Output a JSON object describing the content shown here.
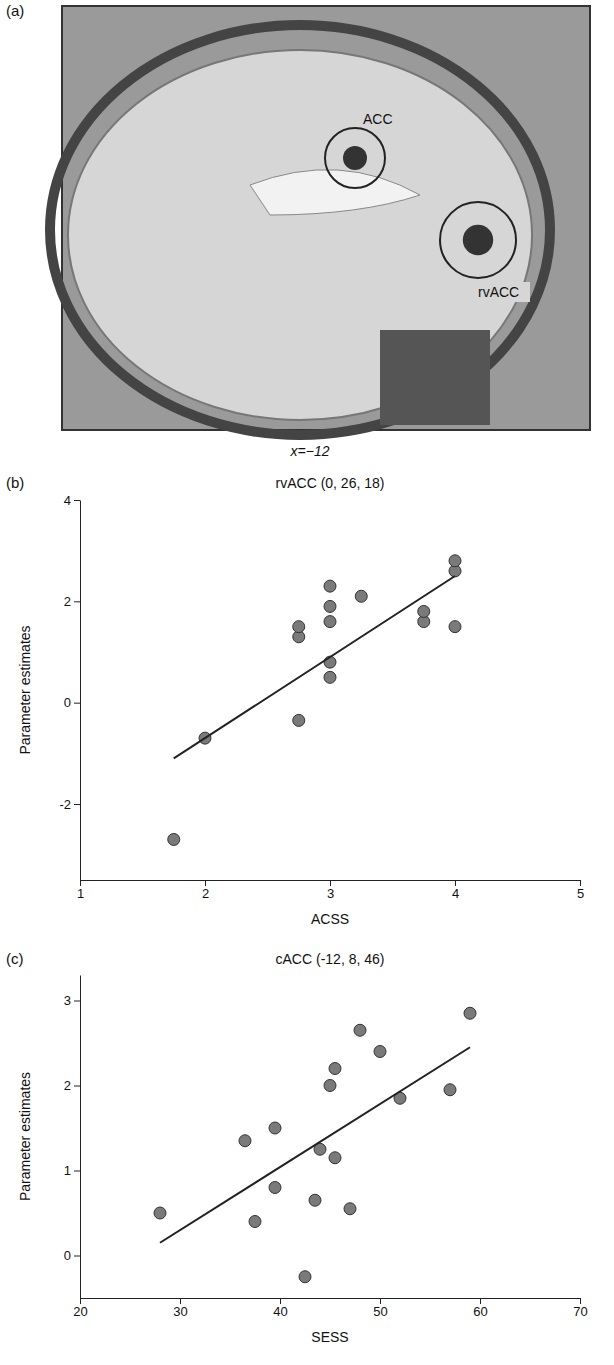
{
  "chart_data": [
    {
      "type": "image",
      "panel": "(a)",
      "labels": [
        "ACC",
        "rvACC"
      ],
      "caption": "x=−12"
    },
    {
      "type": "scatter",
      "panel": "(b)",
      "title": "rvACC (0, 26, 18)",
      "x_label": "ACSS",
      "y_label": "Parameter estimates",
      "xlim": [
        1,
        5
      ],
      "xticks": [
        1,
        2,
        3,
        4,
        5
      ],
      "ylim": [
        -3.5,
        4
      ],
      "yticks": [
        -2,
        0,
        2,
        4
      ],
      "series": [
        {
          "type": "scatter",
          "color": "#7a7a7a",
          "x": [
            1.75,
            2,
            2.75,
            2.75,
            2.75,
            3,
            3,
            3,
            3,
            3,
            3.25,
            3.75,
            3.75,
            4,
            4,
            4
          ],
          "values": [
            -2.7,
            -0.7,
            -0.35,
            1.3,
            1.5,
            0.5,
            0.8,
            1.6,
            1.9,
            2.3,
            2.1,
            1.6,
            1.8,
            1.5,
            2.6,
            2.8
          ]
        },
        {
          "type": "line",
          "color": "#222222",
          "x": [
            1.75,
            4
          ],
          "values": [
            -1.1,
            2.5
          ]
        }
      ]
    },
    {
      "type": "scatter",
      "panel": "(c)",
      "title": "cACC (-12, 8, 46)",
      "x_label": "SESS",
      "y_label": "Parameter estimates",
      "xlim": [
        20,
        70
      ],
      "xticks": [
        20,
        30,
        40,
        50,
        60,
        70
      ],
      "ylim": [
        -0.5,
        3.3
      ],
      "yticks": [
        0,
        1,
        2,
        3
      ],
      "series": [
        {
          "type": "scatter",
          "color": "#7a7a7a",
          "x": [
            28,
            36.5,
            37.5,
            39.5,
            39.5,
            42.5,
            43.5,
            44,
            45,
            45.5,
            45.5,
            47,
            48,
            50,
            52,
            57,
            59
          ],
          "values": [
            0.5,
            1.35,
            0.4,
            1.5,
            0.8,
            -0.25,
            0.65,
            1.25,
            2.0,
            2.2,
            1.15,
            0.55,
            2.65,
            2.4,
            1.85,
            1.95,
            2.85
          ]
        },
        {
          "type": "line",
          "color": "#222222",
          "x": [
            28,
            59
          ],
          "values": [
            0.15,
            2.45
          ]
        }
      ]
    }
  ]
}
